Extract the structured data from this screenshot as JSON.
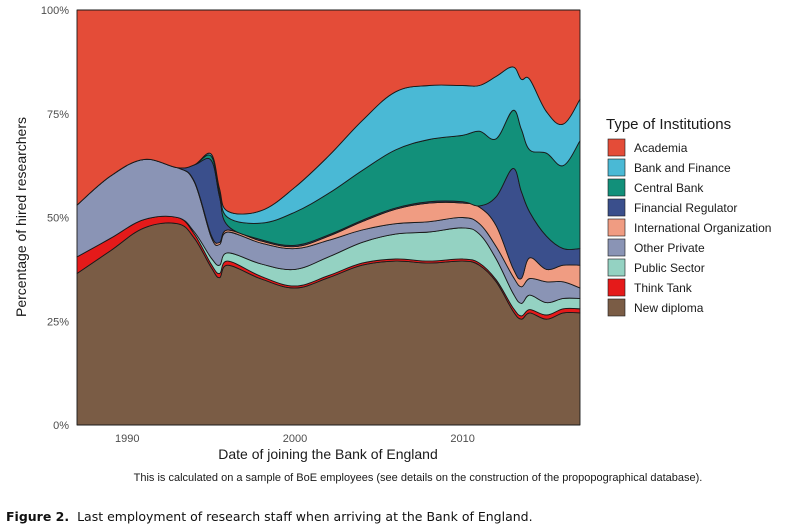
{
  "chart_data": {
    "type": "area",
    "stacked": "percent",
    "xlabel": "Date of joining the Bank of England",
    "ylabel": "Percentage of hired researchers",
    "xlim": [
      1987,
      2017
    ],
    "ylim": [
      0,
      100
    ],
    "x_ticks": [
      1990,
      2000,
      2010
    ],
    "y_ticks": [
      "0%",
      "25%",
      "50%",
      "75%",
      "100%"
    ],
    "grid": false,
    "legend_position": "right",
    "legend_title": "Type of Institutions",
    "note": "This is calculated on a sample of BoE employees (see details on the construction of the propopographical database).",
    "x": [
      1987,
      1989,
      1991,
      1993,
      1994,
      1995,
      1995.5,
      1996,
      1998,
      2000,
      2002,
      2004,
      2006,
      2008,
      2010,
      2011,
      2012,
      2013,
      2013.5,
      2014,
      2015,
      2016,
      2017
    ],
    "series": [
      {
        "name": "New diploma",
        "color": "#7a5c45",
        "values": [
          36.5,
          42,
          47.5,
          48.5,
          45,
          38,
          35.5,
          38.5,
          35,
          33,
          35.5,
          38.5,
          39.5,
          39,
          39.5,
          38.5,
          34.5,
          27.5,
          25.5,
          27,
          25.5,
          27,
          27
        ]
      },
      {
        "name": "Think Tank",
        "color": "#e51a1a",
        "values": [
          4,
          3,
          2,
          1.5,
          1,
          0.8,
          1,
          1,
          0.6,
          0.5,
          0.5,
          0.5,
          0.5,
          0.5,
          0.5,
          0.5,
          0.5,
          0.8,
          0.8,
          0.8,
          1,
          1,
          1
        ]
      },
      {
        "name": "Public Sector",
        "color": "#94d2c2",
        "values": [
          0,
          0,
          0,
          0,
          0.5,
          1.5,
          2,
          2,
          3,
          4,
          4.5,
          5,
          6,
          7,
          7.5,
          7,
          5,
          3.5,
          3,
          3.5,
          3,
          2.5,
          2.5
        ]
      },
      {
        "name": "Other Private",
        "color": "#8a94b5",
        "values": [
          12.5,
          15,
          14.5,
          12,
          12,
          5,
          5,
          5,
          5,
          5,
          4,
          3,
          2.5,
          2.5,
          2.5,
          2.5,
          3,
          4,
          4,
          4,
          5,
          4,
          2.5
        ]
      },
      {
        "name": "International Organization",
        "color": "#f09c82",
        "values": [
          0,
          0,
          0,
          0,
          0.2,
          0.5,
          0.5,
          0.5,
          0.5,
          0.5,
          1,
          2,
          3.5,
          4.5,
          3.5,
          4,
          5,
          2,
          2,
          5,
          3,
          4,
          5.5
        ]
      },
      {
        "name": "Financial Regulator",
        "color": "#3a4f8c",
        "values": [
          0,
          0,
          0,
          0,
          4,
          18,
          11,
          1,
          0.3,
          0.3,
          0.3,
          0.3,
          0.3,
          0.3,
          0.3,
          0.3,
          7,
          24,
          21,
          11,
          8,
          4,
          4
        ]
      },
      {
        "name": "Central Bank",
        "color": "#12907a",
        "values": [
          0,
          0,
          0,
          0,
          0,
          1,
          1,
          2,
          4,
          8,
          10,
          12,
          14,
          15,
          16,
          18,
          14,
          14,
          15,
          15,
          20,
          20,
          26
        ]
      },
      {
        "name": "Bank and Finance",
        "color": "#4ab9d5",
        "values": [
          0,
          0,
          0,
          0,
          0,
          0.5,
          1,
          1.5,
          3,
          6,
          9,
          12,
          14,
          13,
          12,
          11,
          15,
          10.5,
          12,
          17,
          10,
          10,
          10
        ]
      },
      {
        "name": "Academia",
        "color": "#e44c38",
        "values": [
          47,
          40,
          36,
          38,
          37.3,
          34.7,
          43,
          48.5,
          48.1,
          42.7,
          35.2,
          26.7,
          19.7,
          18.2,
          18.2,
          18.2,
          16,
          13.7,
          16.7,
          16.7,
          24.5,
          27.5,
          21.5
        ]
      }
    ]
  },
  "caption": {
    "label": "Figure 2.",
    "text": "Last employment of research staff when arriving at the Bank of England."
  }
}
